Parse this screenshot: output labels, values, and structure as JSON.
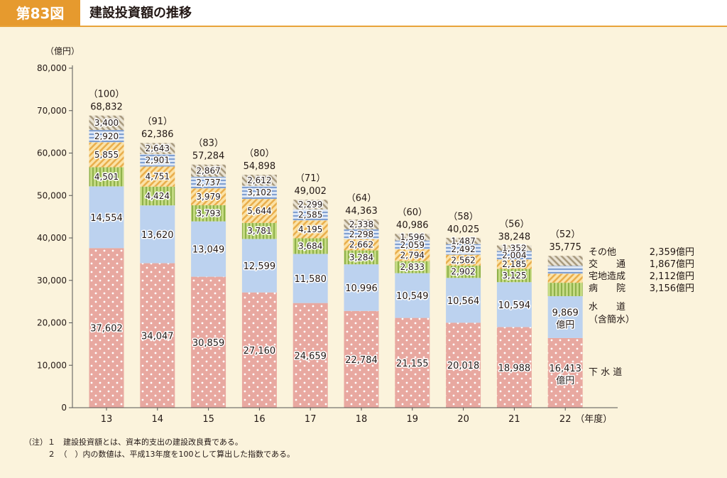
{
  "header": {
    "figure_number": "第83図",
    "title": "建設投資額の推移"
  },
  "notes": [
    "（注）１　建設投資額とは、資本的支出の建設改良費である。",
    "　　　２　（　）内の数値は、平成13年度を100として算出した指数である。"
  ],
  "chart_data": {
    "type": "bar",
    "stacked": true,
    "unit_label": "（億円）",
    "x_unit_label": "（年度）",
    "categories": [
      "13",
      "14",
      "15",
      "16",
      "17",
      "18",
      "19",
      "20",
      "21",
      "22"
    ],
    "ylim": [
      0,
      80000
    ],
    "yticks": [
      "0",
      "10,000",
      "20,000",
      "30,000",
      "40,000",
      "50,000",
      "60,000",
      "70,000",
      "80,000"
    ],
    "series": [
      {
        "key": "sewer",
        "values": [
          37602,
          34047,
          30859,
          27160,
          24659,
          22784,
          21155,
          20018,
          18988,
          16413
        ],
        "labels": [
          "37,602",
          "34,047",
          "30,859",
          "27,160",
          "24,659",
          "22,784",
          "21,155",
          "20,018",
          "18,988",
          "16,413"
        ],
        "color": "#e8a8a0",
        "pattern": "dots"
      },
      {
        "key": "water",
        "values": [
          14554,
          13620,
          13049,
          12599,
          11580,
          10996,
          10549,
          10564,
          10594,
          9869
        ],
        "labels": [
          "14,554",
          "13,620",
          "13,049",
          "12,599",
          "11,580",
          "10,996",
          "10,549",
          "10,564",
          "10,594",
          "9,869"
        ],
        "color": "#bcd2ef",
        "pattern": "solid"
      },
      {
        "key": "hospital",
        "values": [
          4501,
          4424,
          3793,
          3781,
          3684,
          3284,
          2833,
          2902,
          3125,
          3156
        ],
        "labels": [
          "4,501",
          "4,424",
          "3,793",
          "3,781",
          "3,684",
          "3,284",
          "2,833",
          "2,902",
          "3,125",
          "3,156"
        ],
        "color": "#b6cf6e",
        "pattern": "vlines"
      },
      {
        "key": "residential",
        "values": [
          5855,
          4751,
          3979,
          5644,
          4195,
          2662,
          2794,
          2562,
          2185,
          2112
        ],
        "labels": [
          "5,855",
          "4,751",
          "3,979",
          "5,644",
          "4,195",
          "2,662",
          "2,794",
          "2,562",
          "2,185",
          "2,112"
        ],
        "color": "#f2c26b",
        "pattern": "diag"
      },
      {
        "key": "transport",
        "values": [
          2920,
          2901,
          2737,
          3102,
          2585,
          2298,
          2059,
          2492,
          2004,
          1867
        ],
        "labels": [
          "2,920",
          "2,901",
          "2,737",
          "3,102",
          "2,585",
          "2,298",
          "2,059",
          "2,492",
          "2,004",
          "1,867"
        ],
        "color": "#8fb1de",
        "pattern": "hlines"
      },
      {
        "key": "other",
        "values": [
          3400,
          2643,
          2867,
          2612,
          2299,
          2338,
          1596,
          1487,
          1352,
          2359
        ],
        "labels": [
          "3,400",
          "2,643",
          "2,867",
          "2,612",
          "2,299",
          "2,338",
          "1,596",
          "1,487",
          "1,352",
          "2,359"
        ],
        "color": "#c7bfae",
        "pattern": "diag2"
      }
    ],
    "totals": [
      "68,832",
      "62,386",
      "57,284",
      "54,898",
      "49,002",
      "44,363",
      "40,986",
      "40,025",
      "38,248",
      "35,775"
    ],
    "index": [
      "（100）",
      "（91）",
      "（83）",
      "（80）",
      "（71）",
      "（64）",
      "（60）",
      "（58）",
      "（56）",
      "（52）"
    ],
    "legend": [
      {
        "name": "その他",
        "value": "2,359億円"
      },
      {
        "name": "交　　通",
        "value": "1,867億円"
      },
      {
        "name": "宅地造成",
        "value": "2,112億円"
      },
      {
        "name": "病　　院",
        "value": "3,156億円"
      },
      {
        "name": "水　　道",
        "value": ""
      },
      {
        "name": "（含簡水）",
        "value": ""
      },
      {
        "name": "下 水 道",
        "value": ""
      }
    ],
    "last_bar_unit": "億円"
  }
}
